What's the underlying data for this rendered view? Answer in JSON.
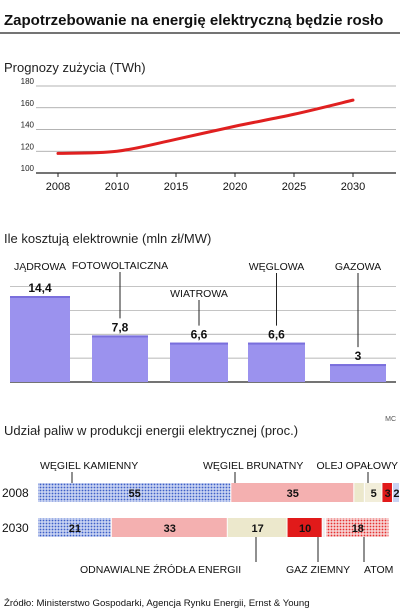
{
  "title": "Zapotrzebowanie na energię elektryczną będzie rosło",
  "credit": "MC",
  "source": "Źródło: Ministerstwo Gospodarki, Agencja Rynku Energii, Ernst & Young",
  "colors": {
    "line": "#e02020",
    "bar": "#9b92ee",
    "bar_dark": "#7a6fdc",
    "coal_hard": "#3d5fc7",
    "coal_brown": "#f4b0b0",
    "renewable": "#ece8cc",
    "gas": "#e11a1a",
    "oil": "#f2eeda",
    "nuclear": "#e53030"
  },
  "chart_data": [
    {
      "type": "line",
      "title": "Prognozy zużycia (TWh)",
      "x": [
        "2008",
        "2010",
        "2015",
        "2020",
        "2025",
        "2030"
      ],
      "y": [
        118,
        120,
        131,
        143,
        154,
        167
      ],
      "yticks": [
        "100",
        "120",
        "140",
        "160",
        "180"
      ],
      "ylim": [
        100,
        180
      ],
      "grid": true
    },
    {
      "type": "bar",
      "title": "Ile kosztują elektrownie (mln zł/MW)",
      "categories": [
        "JĄDROWA",
        "FOTOWOLTAICZNA",
        "WIATROWA",
        "WĘGLOWA",
        "GAZOWA"
      ],
      "values": [
        14.4,
        7.8,
        6.6,
        6.6,
        3
      ],
      "value_labels": [
        "14,4",
        "7,8",
        "6,6",
        "6,6",
        "3"
      ],
      "ylim": [
        0,
        16
      ],
      "grid": true
    },
    {
      "type": "bar",
      "orientation": "horizontal-stacked",
      "title": "Udział paliw w produkcji energii elektrycznej (proc.)",
      "categories": [
        "2008",
        "2030"
      ],
      "series": [
        {
          "name": "WĘGIEL KAMIENNY",
          "values": [
            55,
            21
          ],
          "labels": [
            "55",
            "21"
          ]
        },
        {
          "name": "WĘGIEL BRUNATNY",
          "values": [
            35,
            33
          ],
          "labels": [
            "35",
            "33"
          ]
        },
        {
          "name": "ODNAWIALNE ŹRÓDŁA ENERGII",
          "values": [
            3,
            17
          ],
          "labels": [
            "",
            "17"
          ]
        },
        {
          "name": "OLEJ OPAŁOWY",
          "values": [
            5,
            0
          ],
          "labels": [
            "5",
            ""
          ]
        },
        {
          "name": "GAZ ZIEMNY",
          "values": [
            3,
            10
          ],
          "labels": [
            "3",
            "10"
          ]
        },
        {
          "name": "ATOM",
          "values": [
            0,
            18
          ],
          "labels": [
            "",
            "18"
          ]
        },
        {
          "name": "",
          "values": [
            2,
            1
          ],
          "labels": [
            "2",
            ""
          ]
        }
      ],
      "xlim": [
        0,
        103
      ]
    }
  ]
}
